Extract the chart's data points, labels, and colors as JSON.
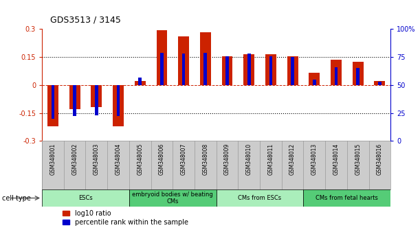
{
  "title": "GDS3513 / 3145",
  "samples": [
    "GSM348001",
    "GSM348002",
    "GSM348003",
    "GSM348004",
    "GSM348005",
    "GSM348006",
    "GSM348007",
    "GSM348008",
    "GSM348009",
    "GSM348010",
    "GSM348011",
    "GSM348012",
    "GSM348013",
    "GSM348014",
    "GSM348015",
    "GSM348016"
  ],
  "log10_ratio": [
    -0.22,
    -0.13,
    -0.12,
    -0.22,
    0.02,
    0.295,
    0.26,
    0.285,
    0.155,
    0.165,
    0.165,
    0.155,
    0.065,
    0.135,
    0.125,
    0.02
  ],
  "percentile_rank": [
    20,
    22,
    23,
    22,
    57,
    79,
    78,
    79,
    76,
    78,
    76,
    75,
    55,
    66,
    65,
    53
  ],
  "ylim_left": [
    -0.3,
    0.3
  ],
  "ylim_right": [
    0,
    100
  ],
  "yticks_left": [
    -0.3,
    -0.15,
    0,
    0.15,
    0.3
  ],
  "yticks_right": [
    0,
    25,
    50,
    75,
    100
  ],
  "ytick_labels_right": [
    "0",
    "25",
    "50",
    "75",
    "100%"
  ],
  "red_color": "#CC2200",
  "blue_color": "#0000CC",
  "cell_types": [
    {
      "label": "ESCs",
      "start": 0,
      "end": 4,
      "color": "#AAEEBB"
    },
    {
      "label": "embryoid bodies w/ beating\nCMs",
      "start": 4,
      "end": 8,
      "color": "#55CC77"
    },
    {
      "label": "CMs from ESCs",
      "start": 8,
      "end": 12,
      "color": "#AAEEBB"
    },
    {
      "label": "CMs from fetal hearts",
      "start": 12,
      "end": 16,
      "color": "#55CC77"
    }
  ],
  "red_bar_width": 0.5,
  "blue_bar_width": 0.15,
  "legend_red": "log10 ratio",
  "legend_blue": "percentile rank within the sample",
  "hlines_dotted": [
    -0.15,
    0.15
  ],
  "sample_box_color": "#CCCCCC",
  "sample_box_edge_color": "#999999"
}
